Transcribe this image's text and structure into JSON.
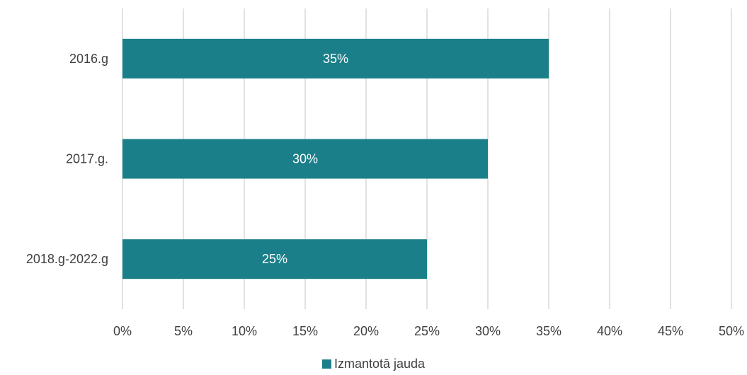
{
  "chart_data": {
    "type": "bar",
    "orientation": "horizontal",
    "categories": [
      "2016.g",
      "2017.g.",
      "2018.g-2022.g"
    ],
    "series": [
      {
        "name": "Izmantotā jauda",
        "values": [
          0.35,
          0.3,
          0.25
        ],
        "data_labels": [
          "35%",
          "30%",
          "25%"
        ],
        "color": "#1b7f89"
      }
    ],
    "x_ticks": [
      0,
      0.05,
      0.1,
      0.15,
      0.2,
      0.25,
      0.3,
      0.35,
      0.4,
      0.45,
      0.5
    ],
    "x_tick_labels": [
      "0%",
      "5%",
      "10%",
      "15%",
      "20%",
      "25%",
      "30%",
      "35%",
      "40%",
      "45%",
      "50%"
    ],
    "xlim": [
      0,
      0.5
    ],
    "grid": "vertical",
    "legend_position": "bottom",
    "gridline_color": "#d9d9d9"
  }
}
